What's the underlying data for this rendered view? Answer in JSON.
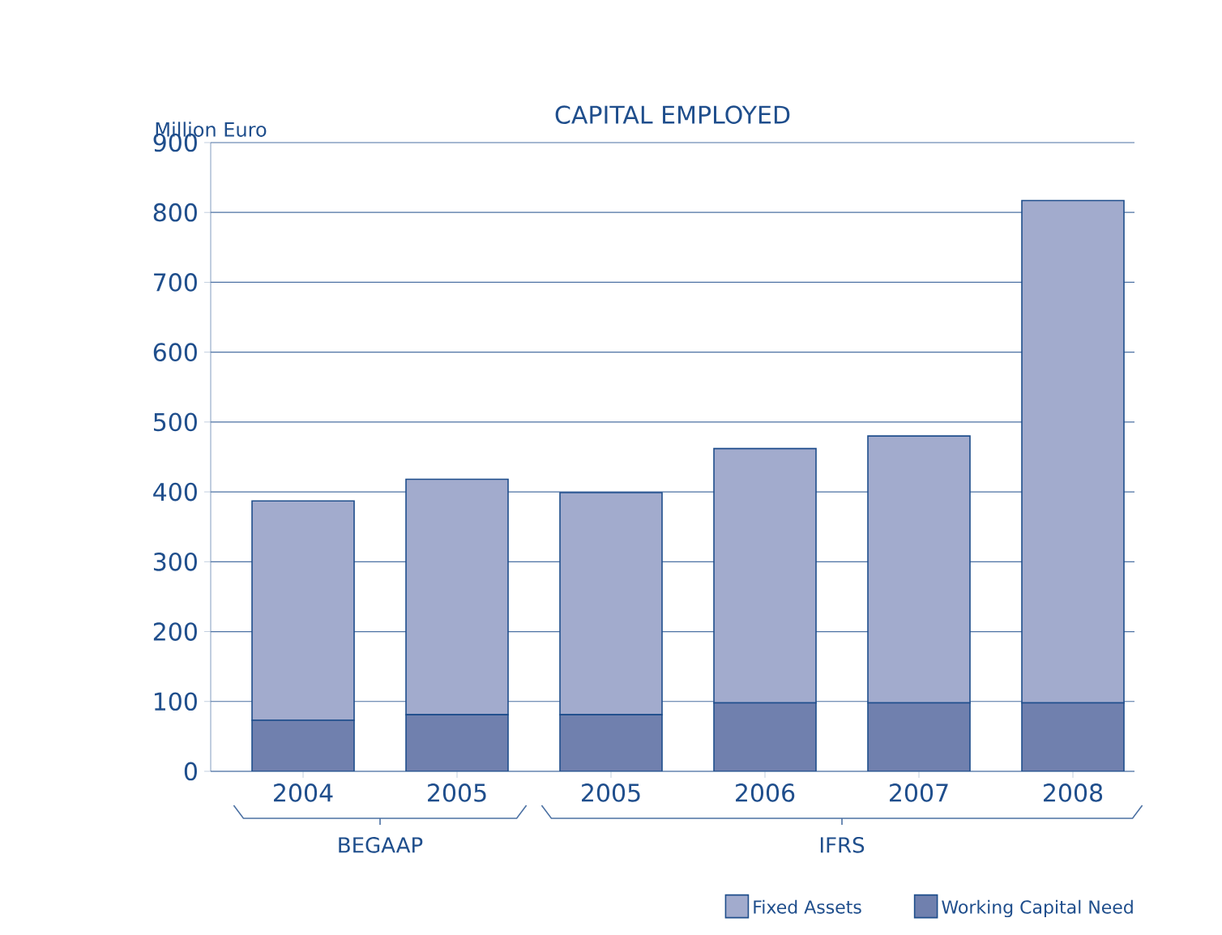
{
  "chart_data": {
    "type": "bar",
    "stacked": true,
    "title": "CAPITAL EMPLOYED",
    "ylabel": "Million Euro",
    "categories": [
      "2004",
      "2005",
      "2005",
      "2006",
      "2007",
      "2008"
    ],
    "series": [
      {
        "name": "Working Capital Need",
        "color": "#7080ae",
        "values": [
          73,
          81,
          81,
          98,
          98,
          98
        ]
      },
      {
        "name": "Fixed Assets",
        "color": "#a2abcd",
        "values": [
          314,
          337,
          318,
          364,
          382,
          719
        ]
      }
    ],
    "ylim": [
      0,
      900
    ],
    "yticks": [
      0,
      100,
      200,
      300,
      400,
      500,
      600,
      700,
      800,
      900
    ],
    "grid": "y",
    "legend": "bottom",
    "annotations": [
      "BEGAAP",
      "IFRS"
    ]
  }
}
